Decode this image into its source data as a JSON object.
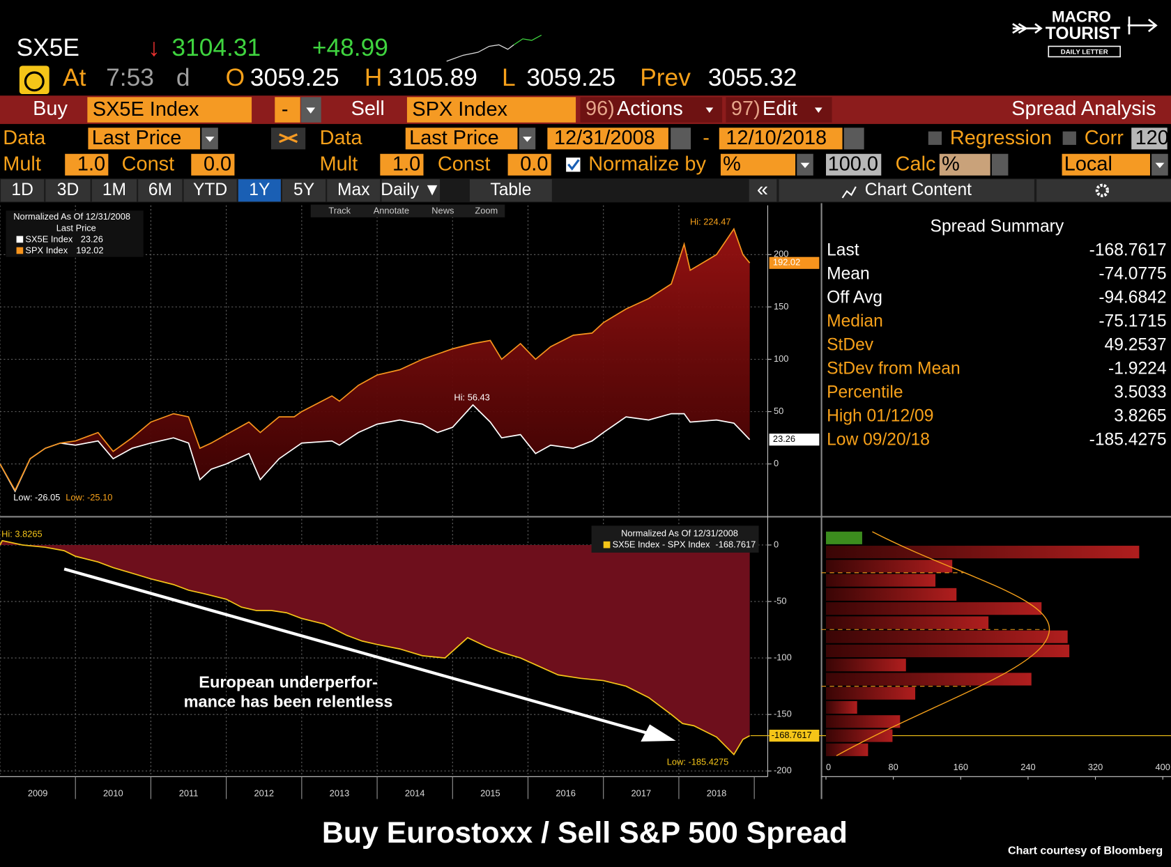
{
  "quote": {
    "ticker": "SX5E",
    "arrow": "↓",
    "last": "3104.31",
    "change": "+48.99",
    "at": "At",
    "time": "7:53",
    "time_flag": "d",
    "open_label": "O",
    "open": "3059.25",
    "high_label": "H",
    "high": "3105.89",
    "low_label": "L",
    "low": "3059.25",
    "prev_label": "Prev",
    "prev": "3055.32"
  },
  "logo": {
    "line1": "MACRO",
    "line2": "TOURIST",
    "tagline": "DAILY LETTER"
  },
  "toolbar": {
    "buy": "Buy",
    "buy_security": "SX5E Index",
    "operator": "-",
    "sell": "Sell",
    "sell_security": "SPX Index",
    "actions_code": "96)",
    "actions": "Actions",
    "edit_code": "97)",
    "edit": "Edit",
    "panel_title": "Spread Analysis"
  },
  "settings": {
    "data_label": "Data",
    "buy_field": "Last Price",
    "sell_data_label": "Data",
    "sell_field": "Last Price",
    "start_date": "12/31/2008",
    "date_sep": "-",
    "end_date": "12/10/2018",
    "regression": "Regression",
    "corr": "Corr",
    "corr_window": "120",
    "mult_label": "Mult",
    "buy_mult": "1.0",
    "const_label": "Const",
    "buy_const": "0.0",
    "sell_mult_label": "Mult",
    "sell_mult": "1.0",
    "sell_const_label": "Const",
    "sell_const": "0.0",
    "normalize": "Normalize by",
    "normalize_unit": "%",
    "normalize_base": "100.0",
    "calc": "Calc",
    "calc_unit": "%",
    "currency": "Local"
  },
  "tabs": [
    "1D",
    "3D",
    "1M",
    "6M",
    "YTD",
    "1Y",
    "5Y",
    "Max",
    "Daily ▼",
    "Table"
  ],
  "active_tab": 5,
  "collapse": "«",
  "chart_content": "Chart Content",
  "chart_tools": [
    "Track",
    "Annotate",
    "News",
    "Zoom"
  ],
  "chart_data": [
    {
      "type": "line",
      "legend": {
        "title": "Normalized As Of 12/31/2008",
        "subtitle": "Last Price"
      },
      "x": [
        2009.0,
        2009.2,
        2009.4,
        2009.6,
        2009.8,
        2010.0,
        2010.3,
        2010.5,
        2010.75,
        2011.0,
        2011.3,
        2011.5,
        2011.65,
        2011.8,
        2012.0,
        2012.3,
        2012.45,
        2012.7,
        2012.9,
        2013.0,
        2013.4,
        2013.5,
        2013.75,
        2014.0,
        2014.3,
        2014.6,
        2014.8,
        2015.0,
        2015.27,
        2015.5,
        2015.65,
        2015.9,
        2016.1,
        2016.3,
        2016.6,
        2016.85,
        2017.0,
        2017.3,
        2017.6,
        2017.9,
        2018.07,
        2018.15,
        2018.5,
        2018.73,
        2018.85,
        2018.94
      ],
      "series": [
        {
          "name": "SX5E Index",
          "color": "#ffffff",
          "last_label": "23.26",
          "values": [
            0,
            -26.05,
            5,
            15,
            20,
            18,
            22,
            5,
            15,
            20,
            25,
            20,
            -15,
            -5,
            0,
            10,
            -15,
            5,
            15,
            20,
            22,
            18,
            30,
            38,
            42,
            38,
            30,
            35,
            56.43,
            40,
            25,
            28,
            10,
            18,
            15,
            22,
            30,
            45,
            42,
            48,
            48,
            40,
            42,
            39.04,
            30,
            23.26
          ]
        },
        {
          "name": "SPX Index",
          "color": "#f7941d",
          "last_label": "192.02",
          "values": [
            0,
            -25.1,
            5,
            15,
            20,
            22,
            30,
            12,
            25,
            40,
            48,
            45,
            15,
            20,
            28,
            40,
            30,
            45,
            45,
            50,
            65,
            60,
            75,
            85,
            90,
            100,
            105,
            110,
            115,
            118,
            100,
            115,
            100,
            112,
            123,
            125,
            135,
            148,
            158,
            172,
            210,
            185,
            200,
            224.47,
            200,
            192.02
          ]
        }
      ],
      "annotations": [
        "Hi: 224.47",
        "Hi: 56.43",
        "Low: -26.05",
        "Low: -25.10"
      ],
      "fill": "#8a1010",
      "xlim": [
        2009,
        2019
      ],
      "ylim": [
        -49,
        247
      ],
      "yticks": [
        0,
        50,
        100,
        150,
        200
      ],
      "grid": true
    },
    {
      "type": "area",
      "legend": {
        "title": "Normalized As Of 12/31/2008"
      },
      "x": [
        2009.0,
        2009.03,
        2009.3,
        2009.6,
        2009.85,
        2010.0,
        2010.3,
        2010.5,
        2010.75,
        2011.0,
        2011.3,
        2011.5,
        2011.7,
        2012.0,
        2012.2,
        2012.4,
        2012.6,
        2012.8,
        2013.0,
        2013.3,
        2013.6,
        2013.8,
        2014.0,
        2014.3,
        2014.6,
        2014.9,
        2015.2,
        2015.45,
        2015.65,
        2015.9,
        2016.1,
        2016.4,
        2016.7,
        2017.0,
        2017.3,
        2017.6,
        2017.9,
        2018.05,
        2018.2,
        2018.5,
        2018.73,
        2018.85,
        2018.94
      ],
      "series": [
        {
          "name": "SX5E Index - SPX Index",
          "color": "#f5c518",
          "fill": "#6e0f1c",
          "last_label": "-168.7617",
          "values": [
            0,
            3.8265,
            0,
            -2,
            -5,
            -10,
            -15,
            -20,
            -25,
            -30,
            -35,
            -40,
            -43,
            -48,
            -55,
            -58,
            -58,
            -60,
            -65,
            -70,
            -80,
            -85,
            -88,
            -92,
            -98,
            -100,
            -82,
            -90,
            -95,
            -100,
            -106,
            -115,
            -118,
            -120,
            -125,
            -135,
            -150,
            -158,
            -160,
            -170,
            -185.4275,
            -172,
            -168.7617
          ]
        }
      ],
      "annotations": [
        "Hi: 3.8265",
        "Low: -185.4275"
      ],
      "xlim": [
        2009,
        2019
      ],
      "xticks": [
        {
          "value": 2009.5,
          "label": "2009"
        },
        {
          "value": 2010.5,
          "label": "2010"
        },
        {
          "value": 2011.5,
          "label": "2011"
        },
        {
          "value": 2012.5,
          "label": "2012"
        },
        {
          "value": 2013.5,
          "label": "2013"
        },
        {
          "value": 2014.5,
          "label": "2014"
        },
        {
          "value": 2015.5,
          "label": "2015"
        },
        {
          "value": 2016.5,
          "label": "2016"
        },
        {
          "value": 2017.5,
          "label": "2017"
        },
        {
          "value": 2018.5,
          "label": "2018"
        }
      ],
      "ylim": [
        -205,
        23
      ],
      "yticks": [
        0,
        -50,
        -100,
        -150,
        -200
      ],
      "grid": true
    },
    {
      "type": "histogram",
      "orientation": "horizontal",
      "bins": [
        12.5,
        0,
        -12.5,
        -25,
        -37.5,
        -50,
        -62.5,
        -75,
        -87.5,
        -100,
        -112.5,
        -125,
        -137.5,
        -150,
        -162.5,
        -175,
        -187.5
      ],
      "values": [
        43,
        372,
        150,
        130,
        155,
        256,
        193,
        287,
        289,
        95,
        244,
        106,
        37,
        88,
        79,
        50
      ],
      "colors": [
        "#3c8c1e",
        "#9b1b1b",
        "#9b1b1b",
        "#9b1b1b",
        "#9b1b1b",
        "#9b1b1b",
        "#9b1b1b",
        "#9b1b1b",
        "#9b1b1b",
        "#9b1b1b",
        "#9b1b1b",
        "#9b1b1b",
        "#9b1b1b",
        "#9b1b1b",
        "#9b1b1b",
        "#9b1b1b"
      ],
      "xlim": [
        0,
        400
      ],
      "xticks": [
        0,
        80,
        160,
        240,
        320,
        400
      ],
      "ylim": [
        -205,
        23
      ]
    }
  ],
  "spread_summary": {
    "title": "Spread Summary",
    "rows": [
      {
        "label": "Last",
        "value": "-168.7617",
        "color": "#ffffff"
      },
      {
        "label": "Mean",
        "value": "-74.0775",
        "color": "#ffffff"
      },
      {
        "label": "Off Avg",
        "value": "-94.6842",
        "color": "#ffffff"
      },
      {
        "label": "Median",
        "value": "-75.1715",
        "color": "#f7a11a"
      },
      {
        "label": "StDev",
        "value": "49.2537",
        "color": "#f7a11a"
      },
      {
        "label": "StDev from Mean",
        "value": "-1.9224",
        "color": "#f7a11a"
      },
      {
        "label": "Percentile",
        "value": "3.5033",
        "color": "#f7a11a"
      },
      {
        "label": "High 01/12/09",
        "value": "3.8265",
        "color": "#f7a11a"
      },
      {
        "label": "Low 09/20/18",
        "value": "-185.4275",
        "color": "#f7a11a"
      }
    ]
  },
  "annotation": [
    "European underperfor-",
    "mance has been relentless"
  ],
  "title": "Buy Eurostoxx / Sell S&P 500 Spread",
  "credit": "Chart courtesy of Bloomberg"
}
